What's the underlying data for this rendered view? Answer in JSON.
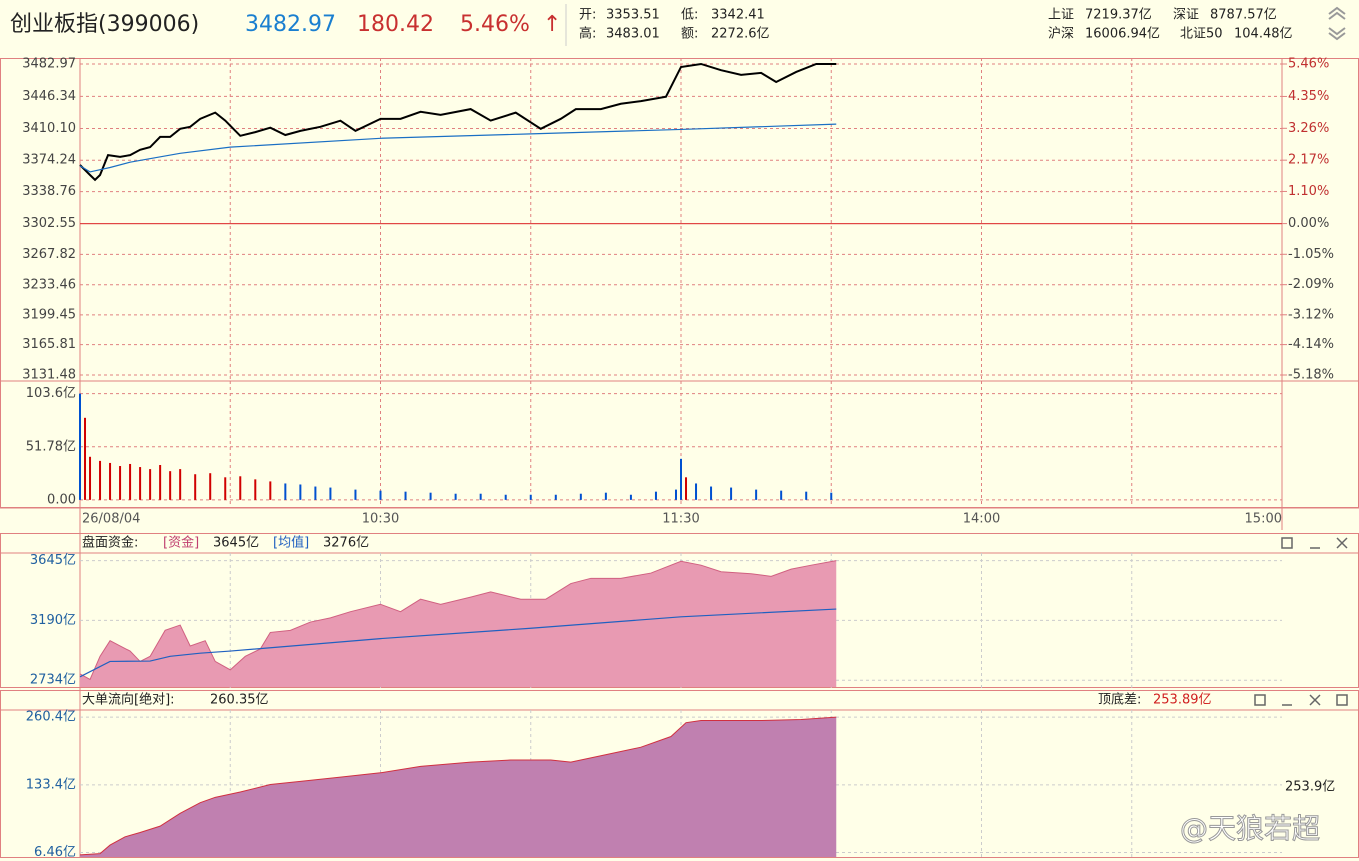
{
  "header": {
    "name": "创业板指(399006)",
    "price": "3482.97",
    "change": "180.42",
    "change_pct": "5.46%",
    "arrow": "↑",
    "open_label": "开:",
    "open": "3353.51",
    "low_label": "低:",
    "low": "3342.41",
    "high_label": "高:",
    "high": "3483.01",
    "amount_label": "额:",
    "amount": "2272.6亿",
    "sh_label": "上证",
    "sh": "7219.37亿",
    "sz_label": "深证",
    "sz": "8787.57亿",
    "hs_label": "沪深",
    "hs": "16006.94亿",
    "bz_label": "北证50",
    "bz": "104.48亿"
  },
  "watermark": "@天狼若超",
  "time_axis": {
    "xlim": [
      0,
      240
    ],
    "xticks": [
      {
        "value": 0,
        "label": "26/08/04"
      },
      {
        "value": 60,
        "label": "10:30"
      },
      {
        "value": 120,
        "label": "11:30"
      },
      {
        "value": 180,
        "label": "14:00"
      },
      {
        "value": 240,
        "label": "15:00"
      }
    ],
    "xgrid": [
      30,
      60,
      90,
      120,
      150,
      180,
      210
    ]
  },
  "chart_data": [
    {
      "type": "line",
      "prev_close": 3302.55,
      "ylim": [
        3131.48,
        3482.97
      ],
      "yticks": [
        3482.97,
        3446.34,
        {
          "value": 3410.1,
          "label": "3410.10"
        },
        3374.24,
        3338.76,
        3302.55,
        3267.82,
        3233.46,
        3199.45,
        3165.81,
        3131.48
      ],
      "y2lim": [
        -5.18,
        5.46
      ],
      "y2ticks": [
        {
          "value": 5.46,
          "label": "5.46%"
        },
        {
          "value": 4.35,
          "label": "4.35%"
        },
        {
          "value": 3.26,
          "label": "3.26%"
        },
        {
          "value": 2.17,
          "label": "2.17%"
        },
        {
          "value": 1.1,
          "label": "1.10%"
        },
        {
          "value": 0,
          "label": "0.00%"
        },
        {
          "value": -1.05,
          "label": "-1.05%"
        },
        {
          "value": -2.09,
          "label": "-2.09%"
        },
        {
          "value": -3.12,
          "label": "-3.12%"
        },
        {
          "value": -4.14,
          "label": "-4.14%"
        },
        {
          "value": -5.18,
          "label": "-5.18%"
        }
      ],
      "series": [
        {
          "color": "#000000",
          "x": [
            0,
            2,
            3,
            4,
            5.6,
            8,
            10,
            12,
            14,
            16,
            18,
            20,
            22,
            24,
            27,
            29,
            32,
            35,
            38,
            41,
            44,
            48,
            52,
            55,
            60,
            64,
            68,
            72,
            78,
            82,
            87,
            92,
            96,
            99,
            104,
            108,
            112,
            117,
            120,
            124,
            128,
            132,
            136,
            139,
            143,
            147,
            151
          ],
          "values": [
            3368.8,
            3357.5,
            3352,
            3357.5,
            3380,
            3378,
            3380,
            3386,
            3389,
            3400.6,
            3400.6,
            3409.7,
            3412,
            3421,
            3428,
            3419,
            3401.8,
            3406,
            3411,
            3402.7,
            3407.4,
            3412,
            3418.9,
            3407.4,
            3421,
            3421,
            3429,
            3425.5,
            3432,
            3419,
            3428,
            3409.7,
            3421,
            3432,
            3432,
            3438,
            3441,
            3446,
            3479.6,
            3483,
            3476,
            3470.7,
            3472.9,
            3462.6,
            3474,
            3483,
            3482.97
          ]
        },
        {
          "color": "#1a6fc4",
          "x": [
            0,
            2,
            6,
            10,
            20,
            30,
            60,
            90,
            120,
            151
          ],
          "values": [
            3368,
            3361,
            3366,
            3372,
            3382,
            3389,
            3399,
            3404,
            3409,
            3415
          ]
        }
      ]
    },
    {
      "type": "bar",
      "ylim": [
        -5,
        112
      ],
      "yticks": [
        {
          "value": 103.6,
          "label": "103.6亿"
        },
        {
          "value": 51.78,
          "label": "51.78亿"
        },
        {
          "value": 0,
          "label": "0.00"
        }
      ],
      "x": [
        0,
        1,
        2,
        4,
        6,
        8,
        10,
        12,
        14,
        16,
        18,
        20,
        23,
        26,
        29,
        32,
        35,
        38,
        41,
        44,
        47,
        50,
        55,
        60,
        65,
        70,
        75,
        80,
        85,
        90,
        95,
        100,
        105,
        110,
        115,
        119,
        120,
        121,
        123,
        126,
        130,
        135,
        140,
        145,
        150
      ],
      "values": [
        103.6,
        80,
        42,
        38,
        36,
        33,
        35,
        32,
        30,
        34,
        28,
        30,
        25,
        26,
        22,
        23,
        20,
        18,
        16,
        15,
        13,
        12,
        10,
        9,
        8,
        7,
        6,
        6,
        5,
        5,
        5,
        6,
        7,
        5,
        8,
        10,
        40,
        22,
        16,
        13,
        12,
        10,
        9,
        8,
        7
      ],
      "colors": [
        "#0050d0",
        "#d00000",
        "#d00000",
        "#d00000",
        "#d00000",
        "#d00000",
        "#d00000",
        "#d00000",
        "#d00000",
        "#d00000",
        "#d00000",
        "#d00000",
        "#d00000",
        "#d00000",
        "#d00000",
        "#d00000",
        "#d00000",
        "#d00000",
        "#0050d0",
        "#0050d0",
        "#0050d0",
        "#0050d0",
        "#0050d0",
        "#0050d0",
        "#0050d0",
        "#0050d0",
        "#0050d0",
        "#0050d0",
        "#0050d0",
        "#0050d0",
        "#0050d0",
        "#0050d0",
        "#0050d0",
        "#0050d0",
        "#0050d0",
        "#0050d0",
        "#0050d0",
        "#d00000",
        "#0050d0",
        "#0050d0",
        "#0050d0",
        "#0050d0",
        "#0050d0",
        "#0050d0",
        "#0050d0"
      ]
    },
    {
      "type": "area",
      "title": "盘面资金:",
      "ylim": [
        2690,
        3680
      ],
      "yticks": [
        {
          "value": 3645,
          "label": "3645亿"
        },
        {
          "value": 3190,
          "label": "3190亿"
        },
        {
          "value": 2734,
          "label": "2734亿"
        }
      ],
      "series": [
        {
          "name": "[资金]",
          "value_label": "3645亿",
          "color": "#e89ab2",
          "stroke": "#d06080",
          "x": [
            0,
            2,
            4,
            6,
            8,
            10,
            12,
            14,
            17,
            20,
            22,
            25,
            27,
            30,
            33,
            36,
            38,
            42,
            46,
            50,
            54,
            60,
            64,
            68,
            72,
            78,
            82,
            88,
            93,
            98,
            102,
            108,
            114,
            120,
            124,
            128,
            134,
            138,
            142,
            146,
            151
          ],
          "values": [
            2782,
            2740,
            2916,
            3035,
            2995,
            2956,
            2877,
            2916,
            3114,
            3154,
            2995,
            3035,
            2877,
            2813,
            2916,
            2972,
            3098,
            3114,
            3177,
            3209,
            3256,
            3312,
            3256,
            3351,
            3312,
            3367,
            3407,
            3351,
            3351,
            3470,
            3510,
            3510,
            3550,
            3640,
            3610,
            3560,
            3545,
            3525,
            3580,
            3610,
            3645
          ]
        },
        {
          "name": "[均值]",
          "value_label": "3276亿",
          "color": "#2060c0",
          "line": true,
          "x": [
            0,
            6,
            14,
            18,
            24,
            30,
            60,
            90,
            120,
            151
          ],
          "values": [
            2760,
            2877,
            2880,
            2916,
            2940,
            2956,
            3051,
            3130,
            3217,
            3276
          ]
        }
      ]
    },
    {
      "type": "area",
      "title": "大单流向[绝对]:",
      "title_value": "260.35亿",
      "diff_label": "顶底差:",
      "diff": "253.89亿",
      "side_label": "253.9亿",
      "ylim": [
        0,
        270
      ],
      "yticks": [
        {
          "value": 260.4,
          "label": "260.4亿"
        },
        {
          "value": 133.4,
          "label": "133.4亿"
        },
        {
          "value": 6.46,
          "label": "6.46亿"
        }
      ],
      "series": [
        {
          "color": "#c080b0",
          "stroke": "#d03040",
          "x": [
            0,
            4,
            6,
            9,
            12,
            16,
            20,
            24,
            27,
            32,
            38,
            44,
            52,
            60,
            68,
            78,
            86,
            94,
            98,
            104,
            112,
            118,
            121,
            124,
            136,
            144,
            151
          ],
          "values": [
            2,
            4.5,
            20.5,
            36,
            44,
            56,
            80,
            100,
            110,
            120,
            134,
            140,
            148,
            156,
            168,
            176,
            180,
            180,
            176,
            188,
            204,
            224,
            250,
            254,
            254,
            256,
            260.35
          ]
        }
      ]
    }
  ]
}
